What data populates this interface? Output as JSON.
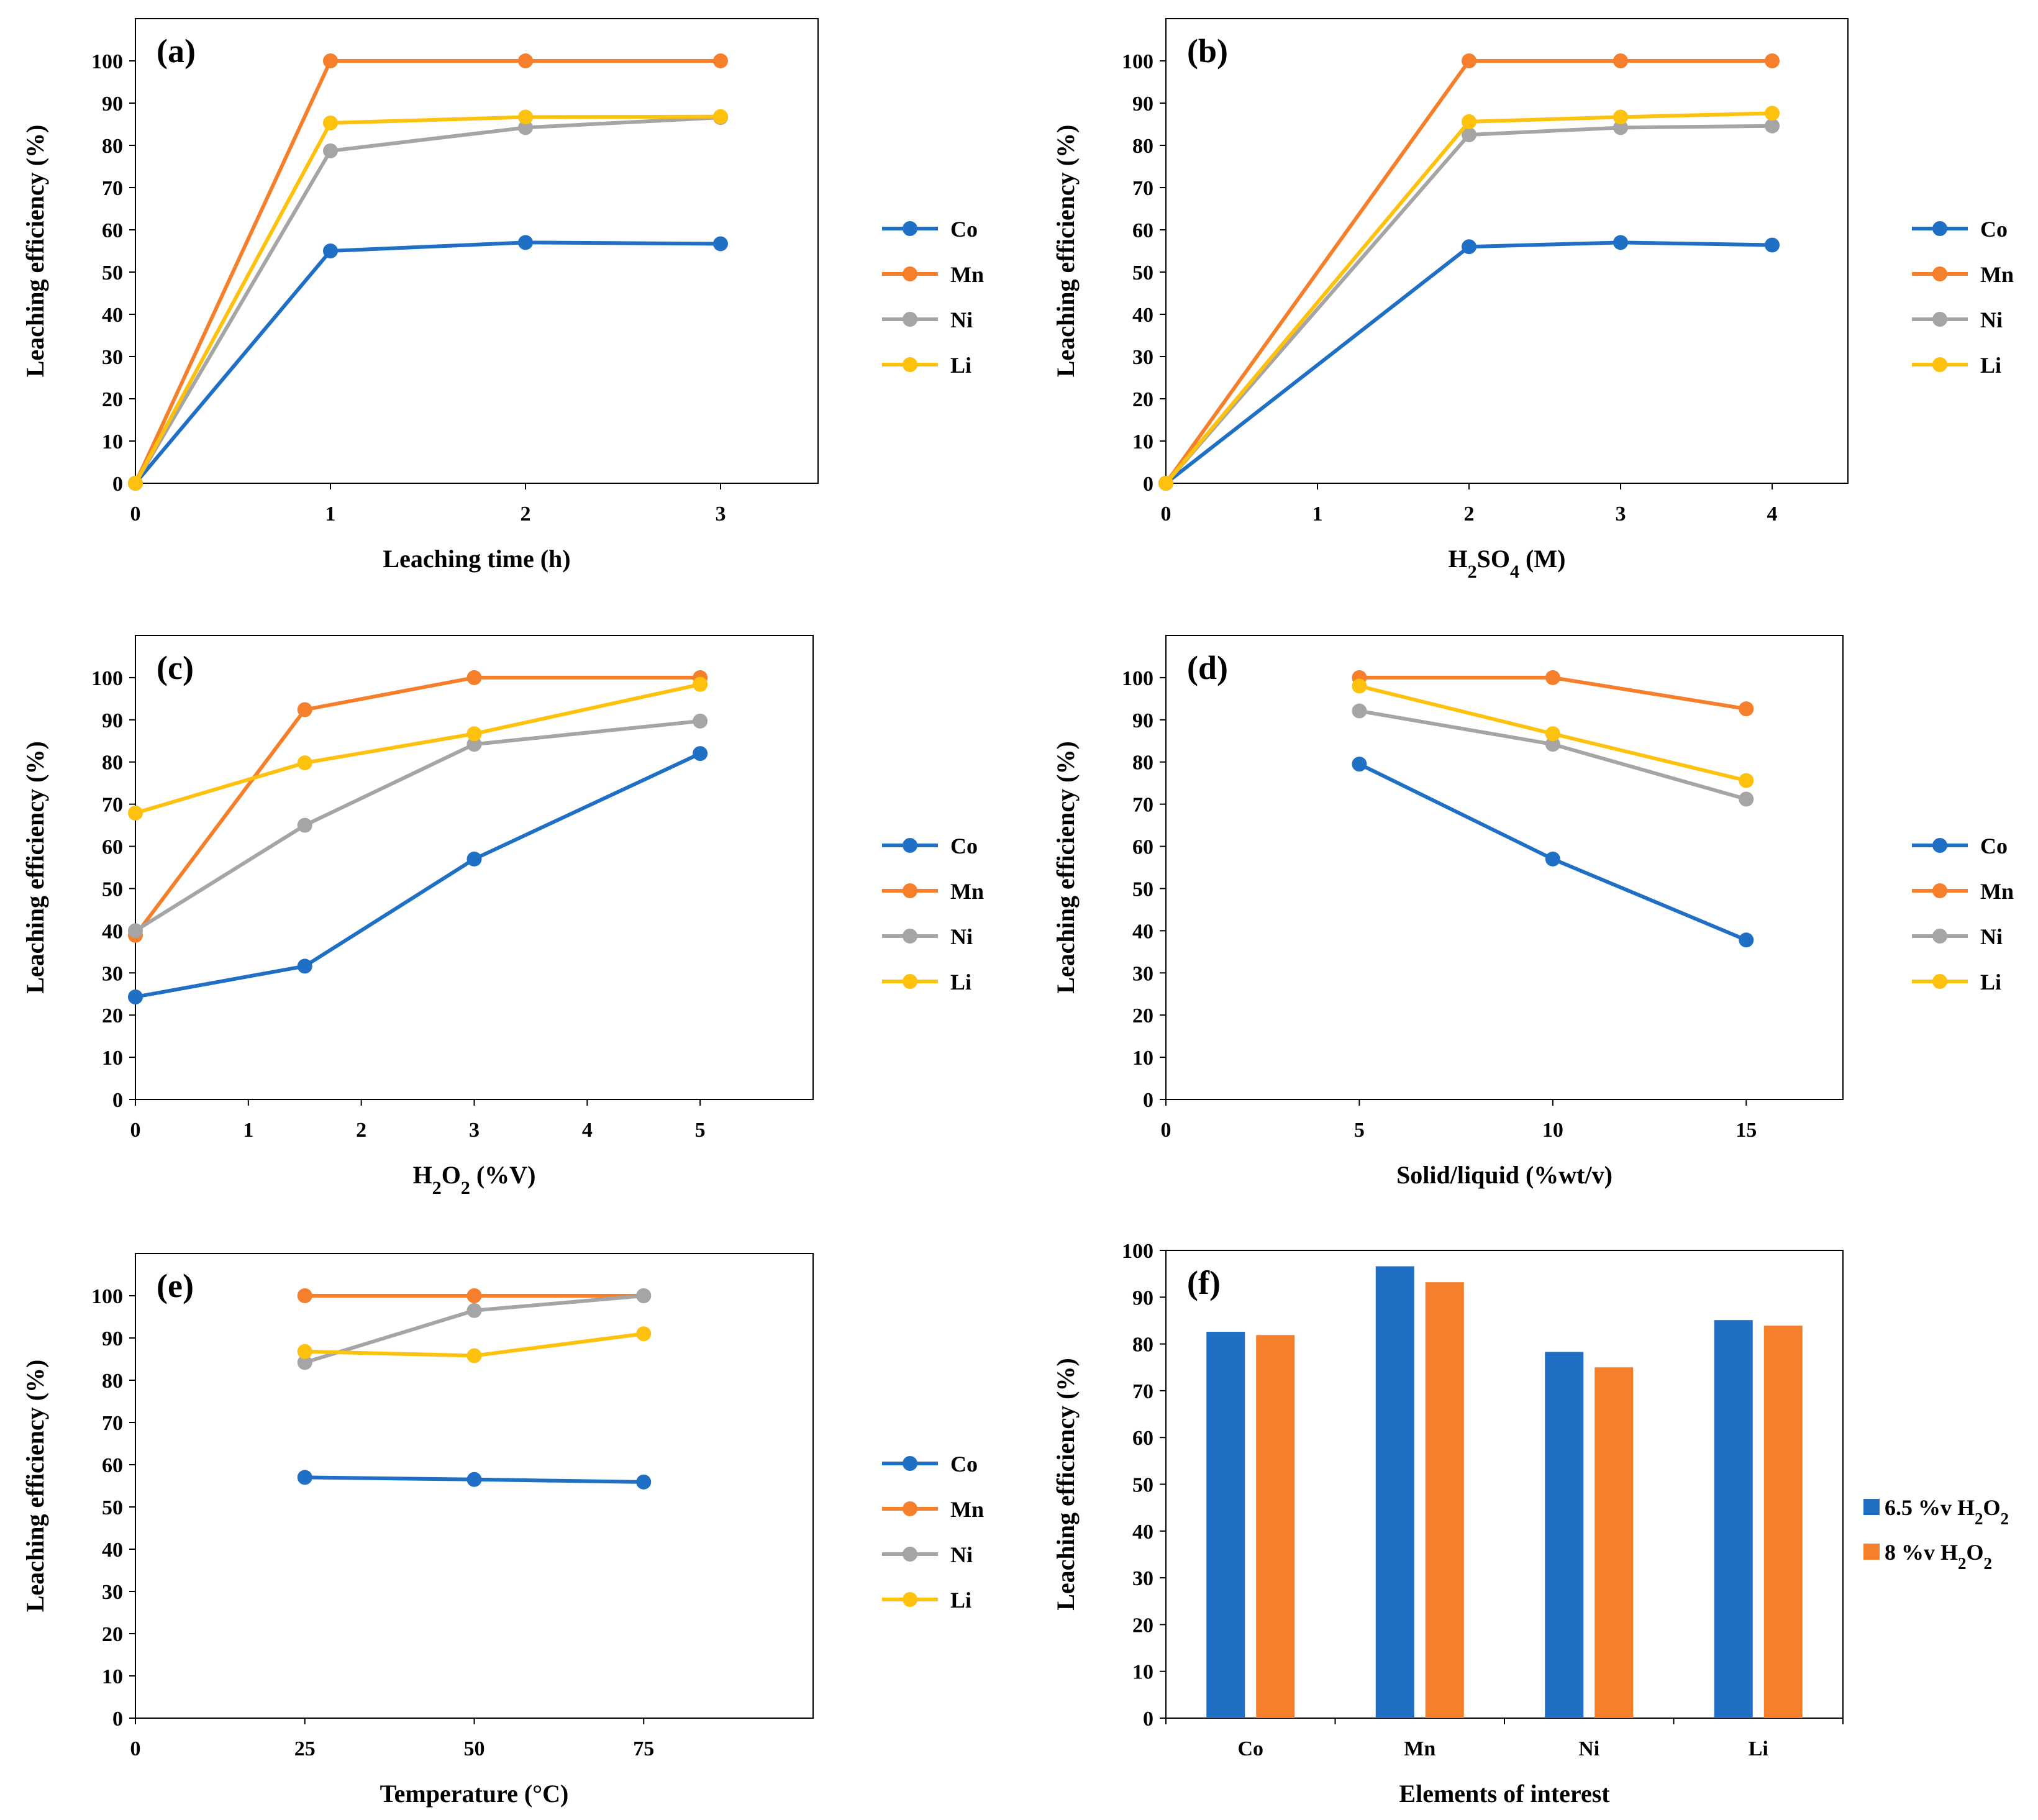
{
  "colors": {
    "Co": "#1f6fc5",
    "Mn": "#f57f2a",
    "Ni": "#a5a5a5",
    "Li": "#fec10e"
  },
  "chart_data": [
    {
      "id": "a",
      "type": "line",
      "panel_label": "(a)",
      "xlabel": "Leaching time (h)",
      "ylabel": "Leaching efficiency (%)",
      "xlim": [
        0,
        3.5
      ],
      "ylim": [
        0,
        110
      ],
      "xticks": [
        0,
        1,
        2,
        3
      ],
      "xtick_labels": [
        "0",
        "1",
        "2",
        "3"
      ],
      "yticks": [
        0,
        10,
        20,
        30,
        40,
        50,
        60,
        70,
        80,
        90,
        100
      ],
      "ytick_labels": [
        "0",
        "10",
        "20",
        "30",
        "40",
        "50",
        "60",
        "70",
        "80",
        "90",
        "100"
      ],
      "x": [
        0,
        1,
        2,
        3
      ],
      "series": [
        {
          "name": "Co",
          "values": [
            0,
            55,
            57,
            56.7
          ]
        },
        {
          "name": "Mn",
          "values": [
            0,
            100,
            100,
            100
          ]
        },
        {
          "name": "Ni",
          "values": [
            0,
            78.7,
            84.2,
            86.6
          ]
        },
        {
          "name": "Li",
          "values": [
            0,
            85.3,
            86.7,
            86.8
          ]
        }
      ],
      "legend": [
        "Co",
        "Mn",
        "Ni",
        "Li"
      ]
    },
    {
      "id": "b",
      "type": "line",
      "panel_label": "(b)",
      "xlabel": "H2SO4 (M)",
      "ylabel": "Leaching efficiency (%)",
      "xlim": [
        0,
        4.5
      ],
      "ylim": [
        0,
        110
      ],
      "xticks": [
        0,
        1,
        2,
        3,
        4
      ],
      "xtick_labels": [
        "0",
        "1",
        "2",
        "3",
        "4"
      ],
      "yticks": [
        0,
        10,
        20,
        30,
        40,
        50,
        60,
        70,
        80,
        90,
        100
      ],
      "ytick_labels": [
        "0",
        "10",
        "20",
        "30",
        "40",
        "50",
        "60",
        "70",
        "80",
        "90",
        "100"
      ],
      "x": [
        0,
        2,
        3,
        4
      ],
      "series": [
        {
          "name": "Co",
          "values": [
            0,
            56,
            57,
            56.4
          ]
        },
        {
          "name": "Mn",
          "values": [
            0,
            100,
            100,
            100
          ]
        },
        {
          "name": "Ni",
          "values": [
            0,
            82.5,
            84.2,
            84.6
          ]
        },
        {
          "name": "Li",
          "values": [
            0,
            85.6,
            86.7,
            87.6
          ]
        }
      ],
      "legend": [
        "Co",
        "Mn",
        "Ni",
        "Li"
      ]
    },
    {
      "id": "c",
      "type": "line",
      "panel_label": "(c)",
      "xlabel": "H2O2 (%V)",
      "ylabel": "Leaching efficiency (%)",
      "xlim": [
        0,
        6
      ],
      "ylim": [
        0,
        110
      ],
      "xticks": [
        0,
        1,
        2,
        3,
        4,
        5
      ],
      "xtick_labels": [
        "0",
        "1",
        "2",
        "3",
        "4",
        "5"
      ],
      "yticks": [
        0,
        10,
        20,
        30,
        40,
        50,
        60,
        70,
        80,
        90,
        100
      ],
      "ytick_labels": [
        "0",
        "10",
        "20",
        "30",
        "40",
        "50",
        "60",
        "70",
        "80",
        "90",
        "100"
      ],
      "x": [
        0,
        1.5,
        3,
        5
      ],
      "series": [
        {
          "name": "Co",
          "values": [
            24.3,
            31.6,
            57,
            82
          ]
        },
        {
          "name": "Mn",
          "values": [
            38.9,
            92.4,
            100,
            100
          ]
        },
        {
          "name": "Ni",
          "values": [
            40,
            65,
            84.2,
            89.7
          ]
        },
        {
          "name": "Li",
          "values": [
            67.9,
            79.8,
            86.7,
            98.4
          ]
        }
      ],
      "legend": [
        "Co",
        "Mn",
        "Ni",
        "Li"
      ]
    },
    {
      "id": "d",
      "type": "line",
      "panel_label": "(d)",
      "xlabel": "Solid/liquid (%wt/v)",
      "ylabel": "Leaching efficiency (%)",
      "xlim": [
        0,
        17.5
      ],
      "ylim": [
        0,
        110
      ],
      "xticks": [
        0,
        5,
        10,
        15
      ],
      "xtick_labels": [
        "0",
        "5",
        "10",
        "15"
      ],
      "yticks": [
        0,
        10,
        20,
        30,
        40,
        50,
        60,
        70,
        80,
        90,
        100
      ],
      "ytick_labels": [
        "0",
        "10",
        "20",
        "30",
        "40",
        "50",
        "60",
        "70",
        "80",
        "90",
        "100"
      ],
      "x": [
        5,
        10,
        15
      ],
      "series": [
        {
          "name": "Co",
          "values": [
            79.5,
            57,
            37.8
          ]
        },
        {
          "name": "Mn",
          "values": [
            100,
            100,
            92.6
          ]
        },
        {
          "name": "Ni",
          "values": [
            92.1,
            84.2,
            71.2
          ]
        },
        {
          "name": "Li",
          "values": [
            98,
            86.7,
            75.6
          ]
        }
      ],
      "legend": [
        "Co",
        "Mn",
        "Ni",
        "Li"
      ]
    },
    {
      "id": "e",
      "type": "line",
      "panel_label": "(e)",
      "xlabel": "Temperature (°C)",
      "ylabel": "Leaching efficiency (%)",
      "xlim": [
        0,
        100
      ],
      "ylim": [
        0,
        110
      ],
      "xticks": [
        0,
        25,
        50,
        75
      ],
      "xtick_labels": [
        "0",
        "25",
        "50",
        "75"
      ],
      "yticks": [
        0,
        10,
        20,
        30,
        40,
        50,
        60,
        70,
        80,
        90,
        100
      ],
      "ytick_labels": [
        "0",
        "10",
        "20",
        "30",
        "40",
        "50",
        "60",
        "70",
        "80",
        "90",
        "100"
      ],
      "x": [
        25,
        50,
        75
      ],
      "series": [
        {
          "name": "Co",
          "values": [
            57,
            56.5,
            55.9
          ]
        },
        {
          "name": "Mn",
          "values": [
            100,
            100,
            100
          ]
        },
        {
          "name": "Ni",
          "values": [
            84.2,
            96.5,
            100
          ]
        },
        {
          "name": "Li",
          "values": [
            86.8,
            85.8,
            91
          ]
        }
      ],
      "legend": [
        "Co",
        "Mn",
        "Ni",
        "Li"
      ]
    },
    {
      "id": "f",
      "type": "bar",
      "panel_label": "(f)",
      "xlabel": "Elements of interest",
      "ylabel": "Leaching efficiency (%)",
      "ylim": [
        0,
        100
      ],
      "yticks": [
        0,
        10,
        20,
        30,
        40,
        50,
        60,
        70,
        80,
        90,
        100
      ],
      "ytick_labels": [
        "0",
        "10",
        "20",
        "30",
        "40",
        "50",
        "60",
        "70",
        "80",
        "90",
        "100"
      ],
      "categories": [
        "Co",
        "Mn",
        "Ni",
        "Li"
      ],
      "series": [
        {
          "name": "6.5 %v H2O2",
          "color_key": "Co",
          "values": [
            82.6,
            96.6,
            78.3,
            85.1
          ]
        },
        {
          "name": "8 %v H2O2",
          "color_key": "Mn",
          "values": [
            81.9,
            93.2,
            75,
            83.9
          ]
        }
      ],
      "legend": [
        "6.5 %v H2O2",
        "8 %v H2O2"
      ]
    }
  ]
}
